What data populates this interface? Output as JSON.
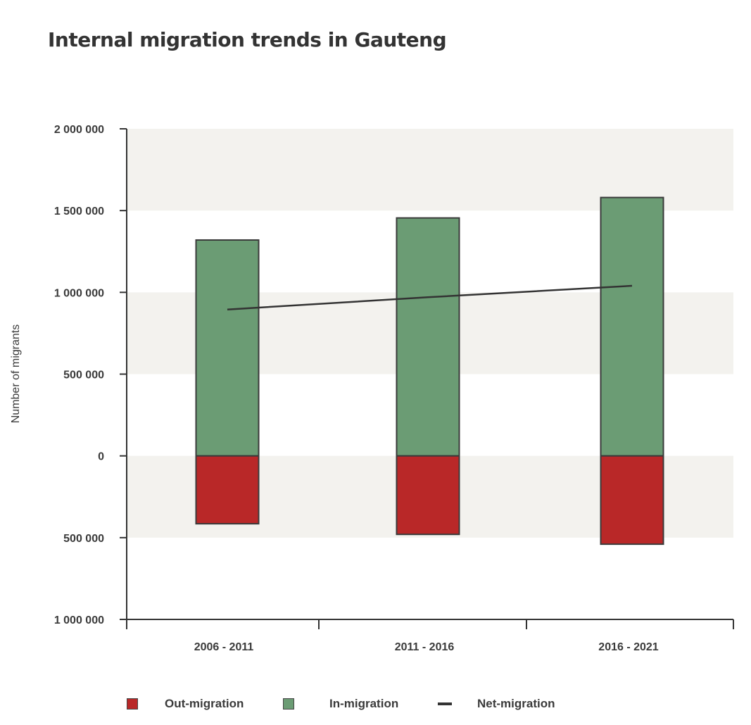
{
  "title": "Internal migration trends in Gauteng",
  "chart_data": {
    "type": "bar",
    "title": "Internal migration trends in Gauteng",
    "ylabel": "Number of migrants",
    "xlabel": "",
    "ylim": [
      -1000000,
      2000000
    ],
    "yticks": [
      {
        "value": 2000000,
        "label": "2 000 000"
      },
      {
        "value": 1500000,
        "label": "1 500 000"
      },
      {
        "value": 1000000,
        "label": "1 000 000"
      },
      {
        "value": 500000,
        "label": "500 000"
      },
      {
        "value": 0,
        "label": "0"
      },
      {
        "value": -500000,
        "label": "500 000"
      },
      {
        "value": -1000000,
        "label": "1 000 000"
      }
    ],
    "categories": [
      "2006 - 2011",
      "2011 - 2016",
      "2016 - 2021"
    ],
    "series": [
      {
        "name": "Out-migration",
        "type": "bar",
        "color": "#b92828",
        "values": [
          -415000,
          -480000,
          -540000
        ]
      },
      {
        "name": "In-migration",
        "type": "bar",
        "color": "#6b9c74",
        "values": [
          1320000,
          1455000,
          1580000
        ]
      },
      {
        "name": "Net-migration",
        "type": "line",
        "color": "#333333",
        "values": [
          895000,
          970000,
          1040000
        ]
      }
    ],
    "grid": "alternating horizontal bands",
    "legend_position": "bottom"
  },
  "legend": [
    {
      "label": "Out-migration",
      "kind": "square",
      "color": "#b92828"
    },
    {
      "label": "In-migration",
      "kind": "square",
      "color": "#6b9c74"
    },
    {
      "label": "Net-migration",
      "kind": "line",
      "color": "#333333"
    }
  ]
}
